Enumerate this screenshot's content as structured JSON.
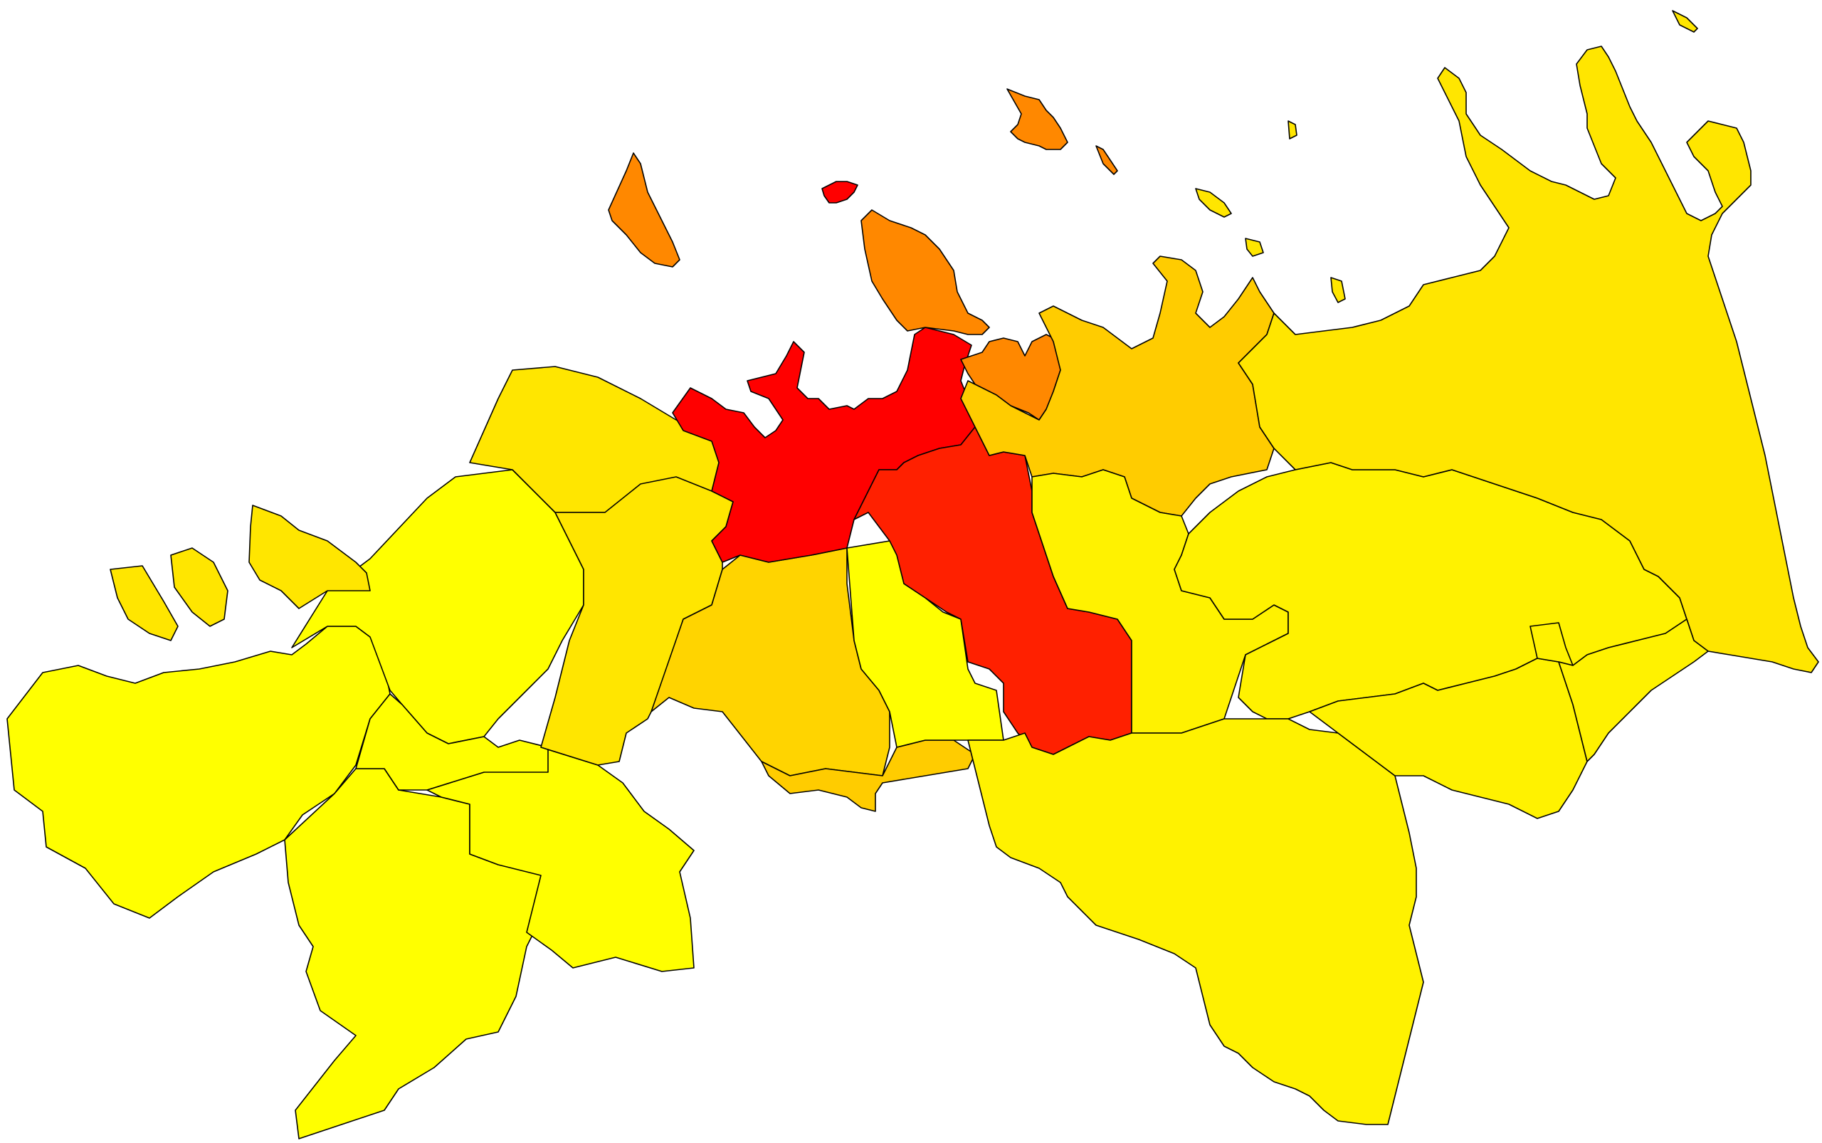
{
  "map": {
    "type": "choropleth",
    "palette": {
      "level_1": "#ffff00",
      "level_2": "#fff200",
      "level_3": "#ffe600",
      "level_4": "#ffd400",
      "level_5": "#ffcc00",
      "level_6": "#ff8800",
      "level_7": "#ff2000",
      "level_8": "#ff0000"
    },
    "regions": [
      {
        "id": "west-large",
        "level": "level_1"
      },
      {
        "id": "southwest",
        "level": "level_1"
      },
      {
        "id": "south-central-west",
        "level": "level_1"
      },
      {
        "id": "west-central",
        "level": "level_1"
      },
      {
        "id": "small-west-central",
        "level": "level_1"
      },
      {
        "id": "west-peninsula",
        "level": "level_3"
      },
      {
        "id": "west-islands",
        "level": "level_3"
      },
      {
        "id": "central-west-north",
        "level": "level_3"
      },
      {
        "id": "central-west",
        "level": "level_3"
      },
      {
        "id": "central-south",
        "level": "level_4"
      },
      {
        "id": "central-south-2",
        "level": "level_5"
      },
      {
        "id": "central",
        "level": "level_1"
      },
      {
        "id": "capital",
        "level": "level_8"
      },
      {
        "id": "capital-south",
        "level": "level_7"
      },
      {
        "id": "island-tiny-red",
        "level": "level_8"
      },
      {
        "id": "island-west-orange",
        "level": "level_6"
      },
      {
        "id": "northeast-peninsula",
        "level": "level_6"
      },
      {
        "id": "northeast-enclave",
        "level": "level_6"
      },
      {
        "id": "island-north-orange",
        "level": "level_6"
      },
      {
        "id": "island-north-orange-2",
        "level": "level_6"
      },
      {
        "id": "east-of-capital",
        "level": "level_5"
      },
      {
        "id": "east-central-south",
        "level": "level_2"
      },
      {
        "id": "east-central",
        "level": "level_2"
      },
      {
        "id": "far-east",
        "level": "level_3"
      },
      {
        "id": "southeast",
        "level": "level_2"
      },
      {
        "id": "south-east-small",
        "level": "level_2"
      },
      {
        "id": "east-enclave",
        "level": "level_2"
      },
      {
        "id": "south-east-far",
        "level": "level_2"
      },
      {
        "id": "small-islets-east",
        "level": "level_3"
      }
    ]
  }
}
